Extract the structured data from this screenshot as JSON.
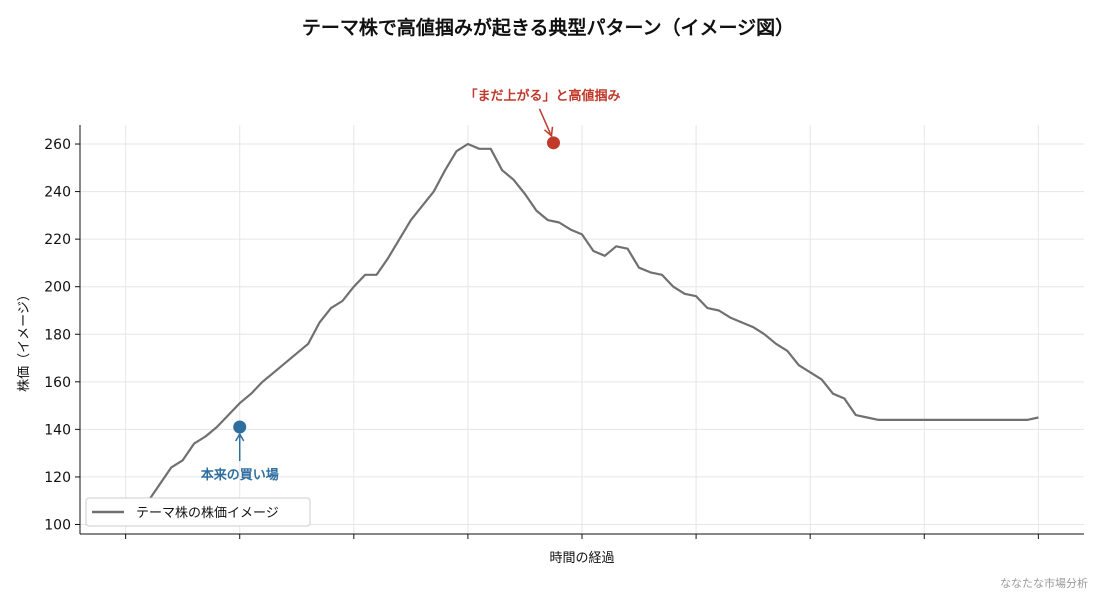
{
  "chart_data": {
    "type": "line",
    "title": "テーマ株で高値掴みが起きる典型パターン（イメージ図）",
    "xlabel": "時間の経過",
    "ylabel": "株価（イメージ）",
    "ylim": [
      96,
      268
    ],
    "xlim": [
      -4,
      84
    ],
    "y_ticks": [
      100,
      120,
      140,
      160,
      180,
      200,
      220,
      240,
      260
    ],
    "x_ticks": [
      0,
      10,
      20,
      30,
      40,
      50,
      60,
      70,
      80
    ],
    "grid": true,
    "legend_position": "lower-left",
    "series": [
      {
        "name": "テーマ株の株価イメージ",
        "color": "#707070",
        "x": [
          0,
          2,
          4,
          5,
          6,
          7,
          8,
          9,
          10,
          11,
          12,
          13,
          14,
          15,
          16,
          17,
          18,
          19,
          20,
          21,
          22,
          23,
          24,
          25,
          26,
          27,
          28,
          29,
          30,
          31,
          32,
          33,
          34,
          35,
          36,
          37,
          38,
          39,
          40,
          41,
          42,
          43,
          44,
          45,
          46,
          47,
          48,
          49,
          50,
          51,
          52,
          53,
          54,
          55,
          56,
          57,
          58,
          59,
          60,
          61,
          62,
          63,
          64,
          65,
          66,
          67,
          68,
          69,
          70,
          71,
          72,
          73,
          74,
          75,
          76,
          77,
          78,
          79,
          80
        ],
        "values": [
          104,
          110,
          124,
          127,
          134,
          137,
          141,
          146,
          151,
          155,
          160,
          164,
          168,
          172,
          176,
          185,
          191,
          194,
          200,
          205,
          205,
          212,
          220,
          228,
          234,
          240,
          249,
          257,
          260,
          258,
          258,
          249,
          245,
          239,
          232,
          228,
          227,
          224,
          222,
          215,
          213,
          217,
          216,
          208,
          206,
          205,
          200,
          197,
          196,
          191,
          190,
          187,
          185,
          183,
          180,
          176,
          173,
          167,
          164,
          161,
          155,
          153,
          146,
          145,
          144,
          144,
          144,
          144,
          144,
          144,
          144,
          144,
          144,
          144,
          144,
          144,
          144,
          144,
          145
        ]
      }
    ],
    "annotations": [
      {
        "label": "本来の買い場",
        "x": 10,
        "y": 141,
        "color": "#2e6e9e"
      },
      {
        "label": "「まだ上がる」と高値掴み",
        "x": 37.5,
        "y": 260.5,
        "color": "#c0392b"
      }
    ]
  },
  "footer": {
    "credit": "ななたな市場分析"
  }
}
